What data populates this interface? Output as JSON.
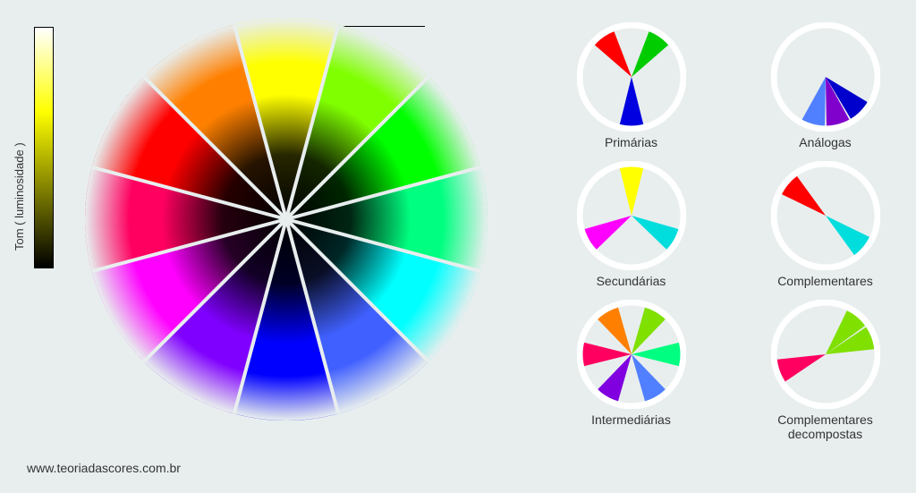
{
  "background_color": "#e8eeee",
  "luminosity": {
    "label": "Tom ( luminosidade )",
    "gradient_top": "#ffffff",
    "gradient_mid": "#ffff00",
    "gradient_bottom": "#000000"
  },
  "main_wheel": {
    "radius": 225,
    "segments": 12,
    "start_angle_deg": -90,
    "colors": [
      "#ffff00",
      "#80ff00",
      "#00ff00",
      "#00ff80",
      "#00ffff",
      "#4060ff",
      "#0000ff",
      "#8000ff",
      "#ff00ff",
      "#ff0060",
      "#ff0000",
      "#ff8000"
    ],
    "separator_color": "#e8eeee",
    "separator_width": 4,
    "center_color": "#000000",
    "edge_fade_to": "#e8eeee"
  },
  "schemes": [
    {
      "label": "Primárias",
      "slices": [
        {
          "angle_deg": -125,
          "color": "#ff0000"
        },
        {
          "angle_deg": -55,
          "color": "#00cc00"
        },
        {
          "angle_deg": 90,
          "color": "#0000e0"
        }
      ]
    },
    {
      "label": "Análogas",
      "slices": [
        {
          "angle_deg": 45,
          "color": "#0000cc"
        },
        {
          "angle_deg": 75,
          "color": "#8000cc"
        },
        {
          "angle_deg": 105,
          "color": "#5080ff"
        }
      ]
    },
    {
      "label": "Secundárias",
      "slices": [
        {
          "angle_deg": -90,
          "color": "#ffff00"
        },
        {
          "angle_deg": 30,
          "color": "#00dddd"
        },
        {
          "angle_deg": 150,
          "color": "#ff00ff"
        }
      ]
    },
    {
      "label": "Complementares",
      "slices": [
        {
          "angle_deg": -140,
          "color": "#ff0000"
        },
        {
          "angle_deg": 40,
          "color": "#00dddd"
        }
      ]
    },
    {
      "label": "Intermediárias",
      "slices": [
        {
          "angle_deg": -120,
          "color": "#ff8000"
        },
        {
          "angle_deg": -60,
          "color": "#80e000"
        },
        {
          "angle_deg": 0,
          "color": "#00ff80"
        },
        {
          "angle_deg": 60,
          "color": "#5080ff"
        },
        {
          "angle_deg": 120,
          "color": "#8000e0"
        },
        {
          "angle_deg": 180,
          "color": "#ff0060"
        }
      ]
    },
    {
      "label": "Complementares decompostas",
      "slices": [
        {
          "angle_deg": -50,
          "color": "#80e000"
        },
        {
          "angle_deg": -20,
          "color": "#80e000"
        },
        {
          "angle_deg": 160,
          "color": "#ff0060"
        }
      ]
    }
  ],
  "scheme_circle": {
    "radius": 58,
    "ring_color": "#ffffff",
    "ring_width": 7,
    "slice_half_angle_deg": 14
  },
  "credit": "www.teoriadascores.com.br"
}
